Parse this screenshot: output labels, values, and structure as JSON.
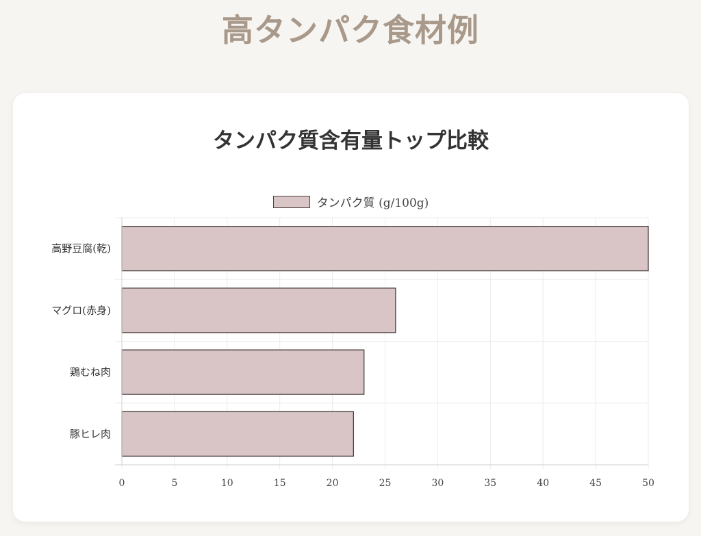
{
  "page": {
    "title": "高タンパク食材例"
  },
  "chart_data": {
    "type": "bar",
    "orientation": "horizontal",
    "title": "タンパク質含有量トップ比較",
    "categories": [
      "高野豆腐(乾)",
      "マグロ(赤身)",
      "鶏むね肉",
      "豚ヒレ肉"
    ],
    "series": [
      {
        "name": "タンパク質 (g/100g)",
        "values": [
          50,
          26,
          23,
          22
        ],
        "color": "#d9c5c5",
        "border_color": "#4a4040"
      }
    ],
    "xlim": [
      0,
      50
    ],
    "x_ticks": [
      0,
      5,
      10,
      15,
      20,
      25,
      30,
      35,
      40,
      45,
      50
    ],
    "grid": true,
    "legend_position": "top"
  }
}
